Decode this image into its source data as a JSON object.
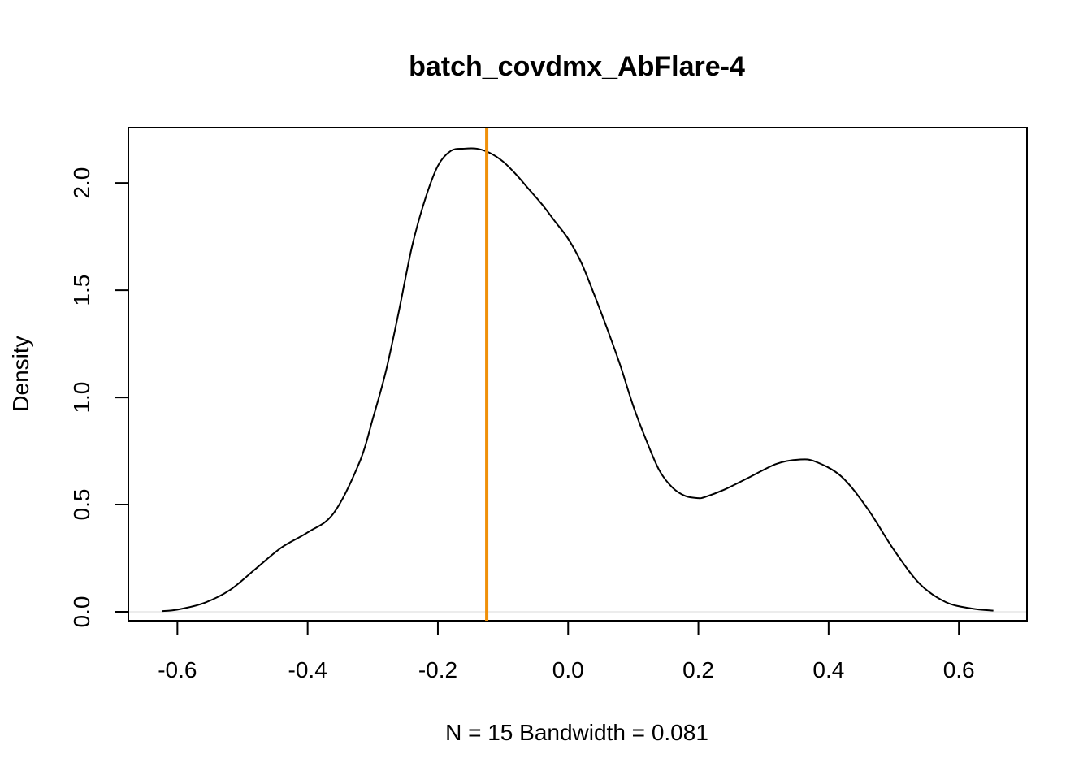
{
  "chart_data": {
    "type": "line",
    "title": "batch_covdmx_AbFlare-4",
    "xlabel": "N = 15   Bandwidth = 0.081",
    "ylabel": "Density",
    "xlim": [
      -0.6753,
      0.7046
    ],
    "ylim": [
      -0.0417,
      2.2583
    ],
    "x_ticks": [
      -0.6,
      -0.4,
      -0.2,
      0.0,
      0.2,
      0.4,
      0.6
    ],
    "x_tick_labels": [
      "-0.6",
      "-0.4",
      "-0.2",
      "0.0",
      "0.2",
      "0.4",
      "0.6"
    ],
    "y_ticks": [
      0.0,
      0.5,
      1.0,
      1.5,
      2.0
    ],
    "y_tick_labels": [
      "0.0",
      "0.5",
      "1.0",
      "1.5",
      "2.0"
    ],
    "grid": false,
    "reference_line": {
      "x": -0.125,
      "color": "#f0900a"
    },
    "zero_line_color": "#e6e6e6",
    "series": [
      {
        "color": "#000000",
        "x": [
          -0.624,
          -0.6,
          -0.56,
          -0.52,
          -0.48,
          -0.44,
          -0.4,
          -0.36,
          -0.32,
          -0.3,
          -0.28,
          -0.26,
          -0.24,
          -0.22,
          -0.2,
          -0.18,
          -0.16,
          -0.14,
          -0.12,
          -0.1,
          -0.08,
          -0.06,
          -0.04,
          -0.02,
          0.0,
          0.02,
          0.04,
          0.06,
          0.08,
          0.1,
          0.12,
          0.14,
          0.16,
          0.18,
          0.2,
          0.21,
          0.24,
          0.28,
          0.32,
          0.355,
          0.38,
          0.42,
          0.46,
          0.5,
          0.54,
          0.58,
          0.62,
          0.653
        ],
        "y": [
          0.003,
          0.01,
          0.04,
          0.1,
          0.2,
          0.3,
          0.37,
          0.46,
          0.7,
          0.9,
          1.12,
          1.4,
          1.7,
          1.92,
          2.08,
          2.15,
          2.16,
          2.16,
          2.14,
          2.1,
          2.04,
          1.97,
          1.9,
          1.82,
          1.74,
          1.63,
          1.48,
          1.32,
          1.15,
          0.96,
          0.8,
          0.66,
          0.58,
          0.54,
          0.53,
          0.535,
          0.57,
          0.63,
          0.69,
          0.71,
          0.7,
          0.63,
          0.48,
          0.29,
          0.13,
          0.045,
          0.015,
          0.005
        ]
      }
    ]
  }
}
